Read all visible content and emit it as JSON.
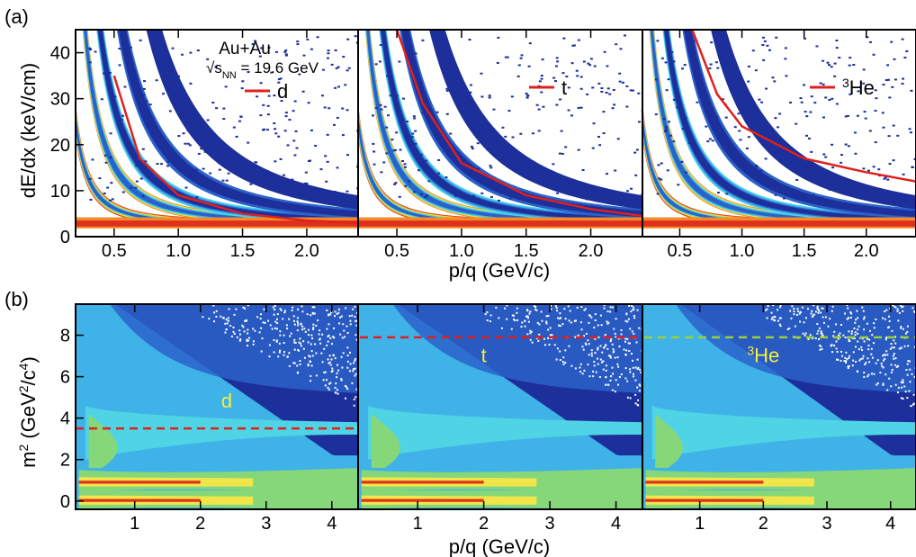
{
  "figure": {
    "panel_labels": [
      "(a)",
      "(b)"
    ],
    "top_xlabel": "p/q (GeV/c)",
    "bottom_xlabel": "p/q (GeV/c)",
    "top_ylabel": "dE/dx (keV/cm)",
    "bottom_ylabel_parts": {
      "m": "m",
      "sup1": "2",
      "open": " (GeV",
      "sup2": "2",
      "mid": "/c",
      "sup3": "4",
      "close": ")"
    },
    "system_text": "Au+Au",
    "energy_sqrt": "√",
    "energy_s": "s",
    "energy_sub": "NN",
    "energy_value": " = 19.6 GeV"
  },
  "colors": {
    "curve": "#e0201c",
    "band_dark": "#1c2f9a",
    "band_mid": "#2a62c9",
    "band_light": "#3fb2e8",
    "band_cyan": "#4fd4e6",
    "band_green": "#86d67a",
    "band_yellow": "#f0e64a",
    "band_orange": "#f08a2a",
    "band_red": "#e0301c",
    "label_yellow": "#f5f03a"
  },
  "chart_data": [
    {
      "type": "heatmap",
      "panel": "(a)",
      "species": "d",
      "legend": "d",
      "xlabel": "p/q (GeV/c)",
      "ylabel": "dE/dx (keV/cm)",
      "xlim": [
        0.2,
        2.4
      ],
      "ylim": [
        0,
        45
      ],
      "xticks": [
        "0.5",
        "1.0",
        "1.5",
        "2.0"
      ],
      "yticks": [
        "0",
        "10",
        "20",
        "30",
        "40"
      ],
      "expected_curve": {
        "x": [
          0.5,
          0.7,
          1.0,
          1.5,
          2.0,
          2.4
        ],
        "y": [
          35,
          17,
          9,
          5,
          3.5,
          3
        ]
      }
    },
    {
      "type": "heatmap",
      "panel": "(a)",
      "species": "t",
      "legend": "t",
      "xlim": [
        0.2,
        2.4
      ],
      "ylim": [
        0,
        45
      ],
      "xticks": [
        "0.5",
        "1.0",
        "1.5",
        "2.0"
      ],
      "expected_curve": {
        "x": [
          0.5,
          0.7,
          1.0,
          1.5,
          2.0,
          2.4
        ],
        "y": [
          45,
          29,
          16,
          9,
          6,
          4.5
        ]
      }
    },
    {
      "type": "heatmap",
      "panel": "(a)",
      "species": "3He",
      "legend": "3He",
      "legend_sup": "3",
      "legend_main": "He",
      "xlim": [
        0.2,
        2.4
      ],
      "ylim": [
        0,
        45
      ],
      "xticks": [
        "0.5",
        "1.0",
        "1.5",
        "2.0"
      ],
      "expected_curve": {
        "x": [
          0.6,
          0.8,
          1.0,
          1.5,
          2.0,
          2.4
        ],
        "y": [
          45,
          31,
          24,
          17,
          14,
          12
        ]
      }
    },
    {
      "type": "heatmap",
      "panel": "(b)",
      "species": "d",
      "label": "d",
      "xlabel": "p/q (GeV/c)",
      "ylabel": "m2 (GeV2/c4)",
      "xlim": [
        0.1,
        4.4
      ],
      "ylim": [
        -0.4,
        9.5
      ],
      "xticks": [
        "1",
        "2",
        "3",
        "4"
      ],
      "yticks": [
        "0",
        "2",
        "4",
        "6",
        "8"
      ],
      "mass_squared_line": 3.5,
      "line_color": "red"
    },
    {
      "type": "heatmap",
      "panel": "(b)",
      "species": "t",
      "label": "t",
      "xlim": [
        0.1,
        4.4
      ],
      "ylim": [
        -0.4,
        9.5
      ],
      "xticks": [
        "1",
        "2",
        "3",
        "4"
      ],
      "mass_squared_line": 7.9,
      "line_color": "red"
    },
    {
      "type": "heatmap",
      "panel": "(b)",
      "species": "3He",
      "label": "3He",
      "label_sup": "3",
      "label_main": "He",
      "xlim": [
        0.1,
        4.4
      ],
      "ylim": [
        -0.4,
        9.5
      ],
      "xticks": [
        "1",
        "2",
        "3",
        "4"
      ],
      "mass_squared_line": 7.9,
      "line_color": "yellow-green"
    }
  ]
}
